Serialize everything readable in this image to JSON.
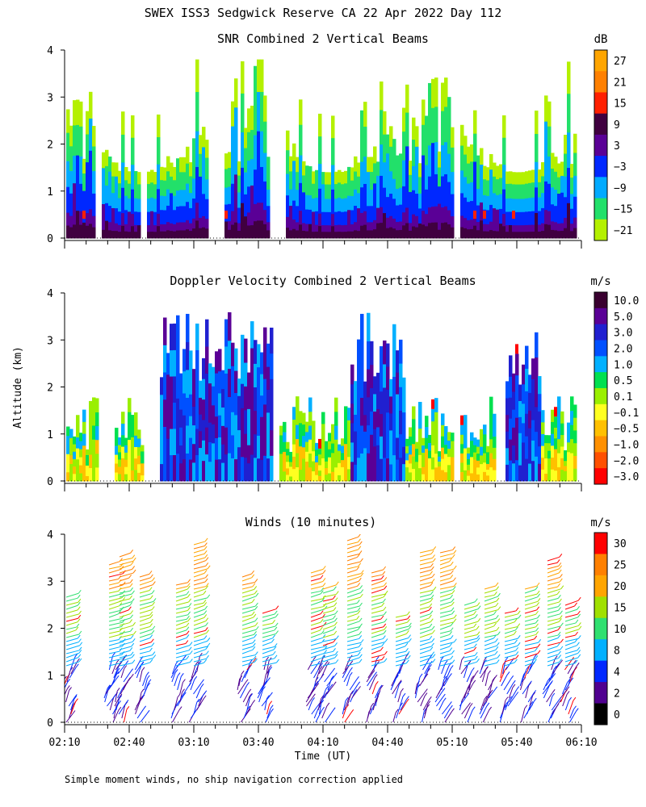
{
  "title": "SWEX ISS3 Sedgwick Reserve CA  22 Apr 2022 Day 112",
  "footnote": "Simple moment winds, no ship navigation correction applied",
  "ylabel": "Altitude (km)",
  "xlabel": "Time (UT)",
  "chart_data": [
    {
      "type": "heatmap",
      "title": "SNR Combined 2 Vertical Beams",
      "ylabel": "Altitude (km)",
      "ylim": [
        0,
        4
      ],
      "yticks": [
        "0",
        "1",
        "2",
        "3",
        "4"
      ],
      "xlim": [
        "02:10",
        "06:10"
      ],
      "colorbar": {
        "unit": "dB",
        "labels": [
          "27",
          "21",
          "15",
          "9",
          "3",
          "−3",
          "−9",
          "−15",
          "−21"
        ],
        "colors": [
          "#ffa500",
          "#ff8000",
          "#ff2000",
          "#400040",
          "#5a0096",
          "#0028ff",
          "#00aaff",
          "#22e06a",
          "#b4f000"
        ]
      }
    },
    {
      "type": "heatmap",
      "title": "Doppler Velocity Combined 2 Vertical Beams",
      "ylabel": "Altitude (km)",
      "ylim": [
        0,
        4
      ],
      "yticks": [
        "0",
        "1",
        "2",
        "3",
        "4"
      ],
      "xlim": [
        "02:10",
        "06:10"
      ],
      "colorbar": {
        "unit": "m/s",
        "labels": [
          "10.0",
          "5.0",
          "3.0",
          "2.0",
          "1.0",
          "0.5",
          "0.1",
          "−0.1",
          "−0.5",
          "−1.0",
          "−2.0",
          "−3.0"
        ],
        "colors": [
          "#3a0030",
          "#5a0096",
          "#2020d0",
          "#0050ff",
          "#00b0ff",
          "#00e050",
          "#9aef00",
          "#ffff20",
          "#ffc000",
          "#ff9000",
          "#ff5000",
          "#ff0000"
        ]
      }
    },
    {
      "type": "scatter",
      "title": "Winds (10 minutes)",
      "ylabel": "Altitude (km)",
      "xlabel": "Time (UT)",
      "ylim": [
        0,
        4
      ],
      "yticks": [
        "0",
        "1",
        "2",
        "3",
        "4"
      ],
      "xlim": [
        "02:10",
        "06:10"
      ],
      "xticks": [
        "02:10",
        "02:40",
        "03:10",
        "03:40",
        "04:10",
        "04:40",
        "05:10",
        "05:40",
        "06:10"
      ],
      "colorbar": {
        "unit": "m/s",
        "labels": [
          "30",
          "25",
          "20",
          "15",
          "10",
          "8",
          "4",
          "2",
          "0"
        ],
        "colors": [
          "#ff0000",
          "#ff8000",
          "#ffa500",
          "#a0e000",
          "#30e070",
          "#00b0ff",
          "#0028ff",
          "#500090",
          "#000000"
        ]
      }
    }
  ]
}
